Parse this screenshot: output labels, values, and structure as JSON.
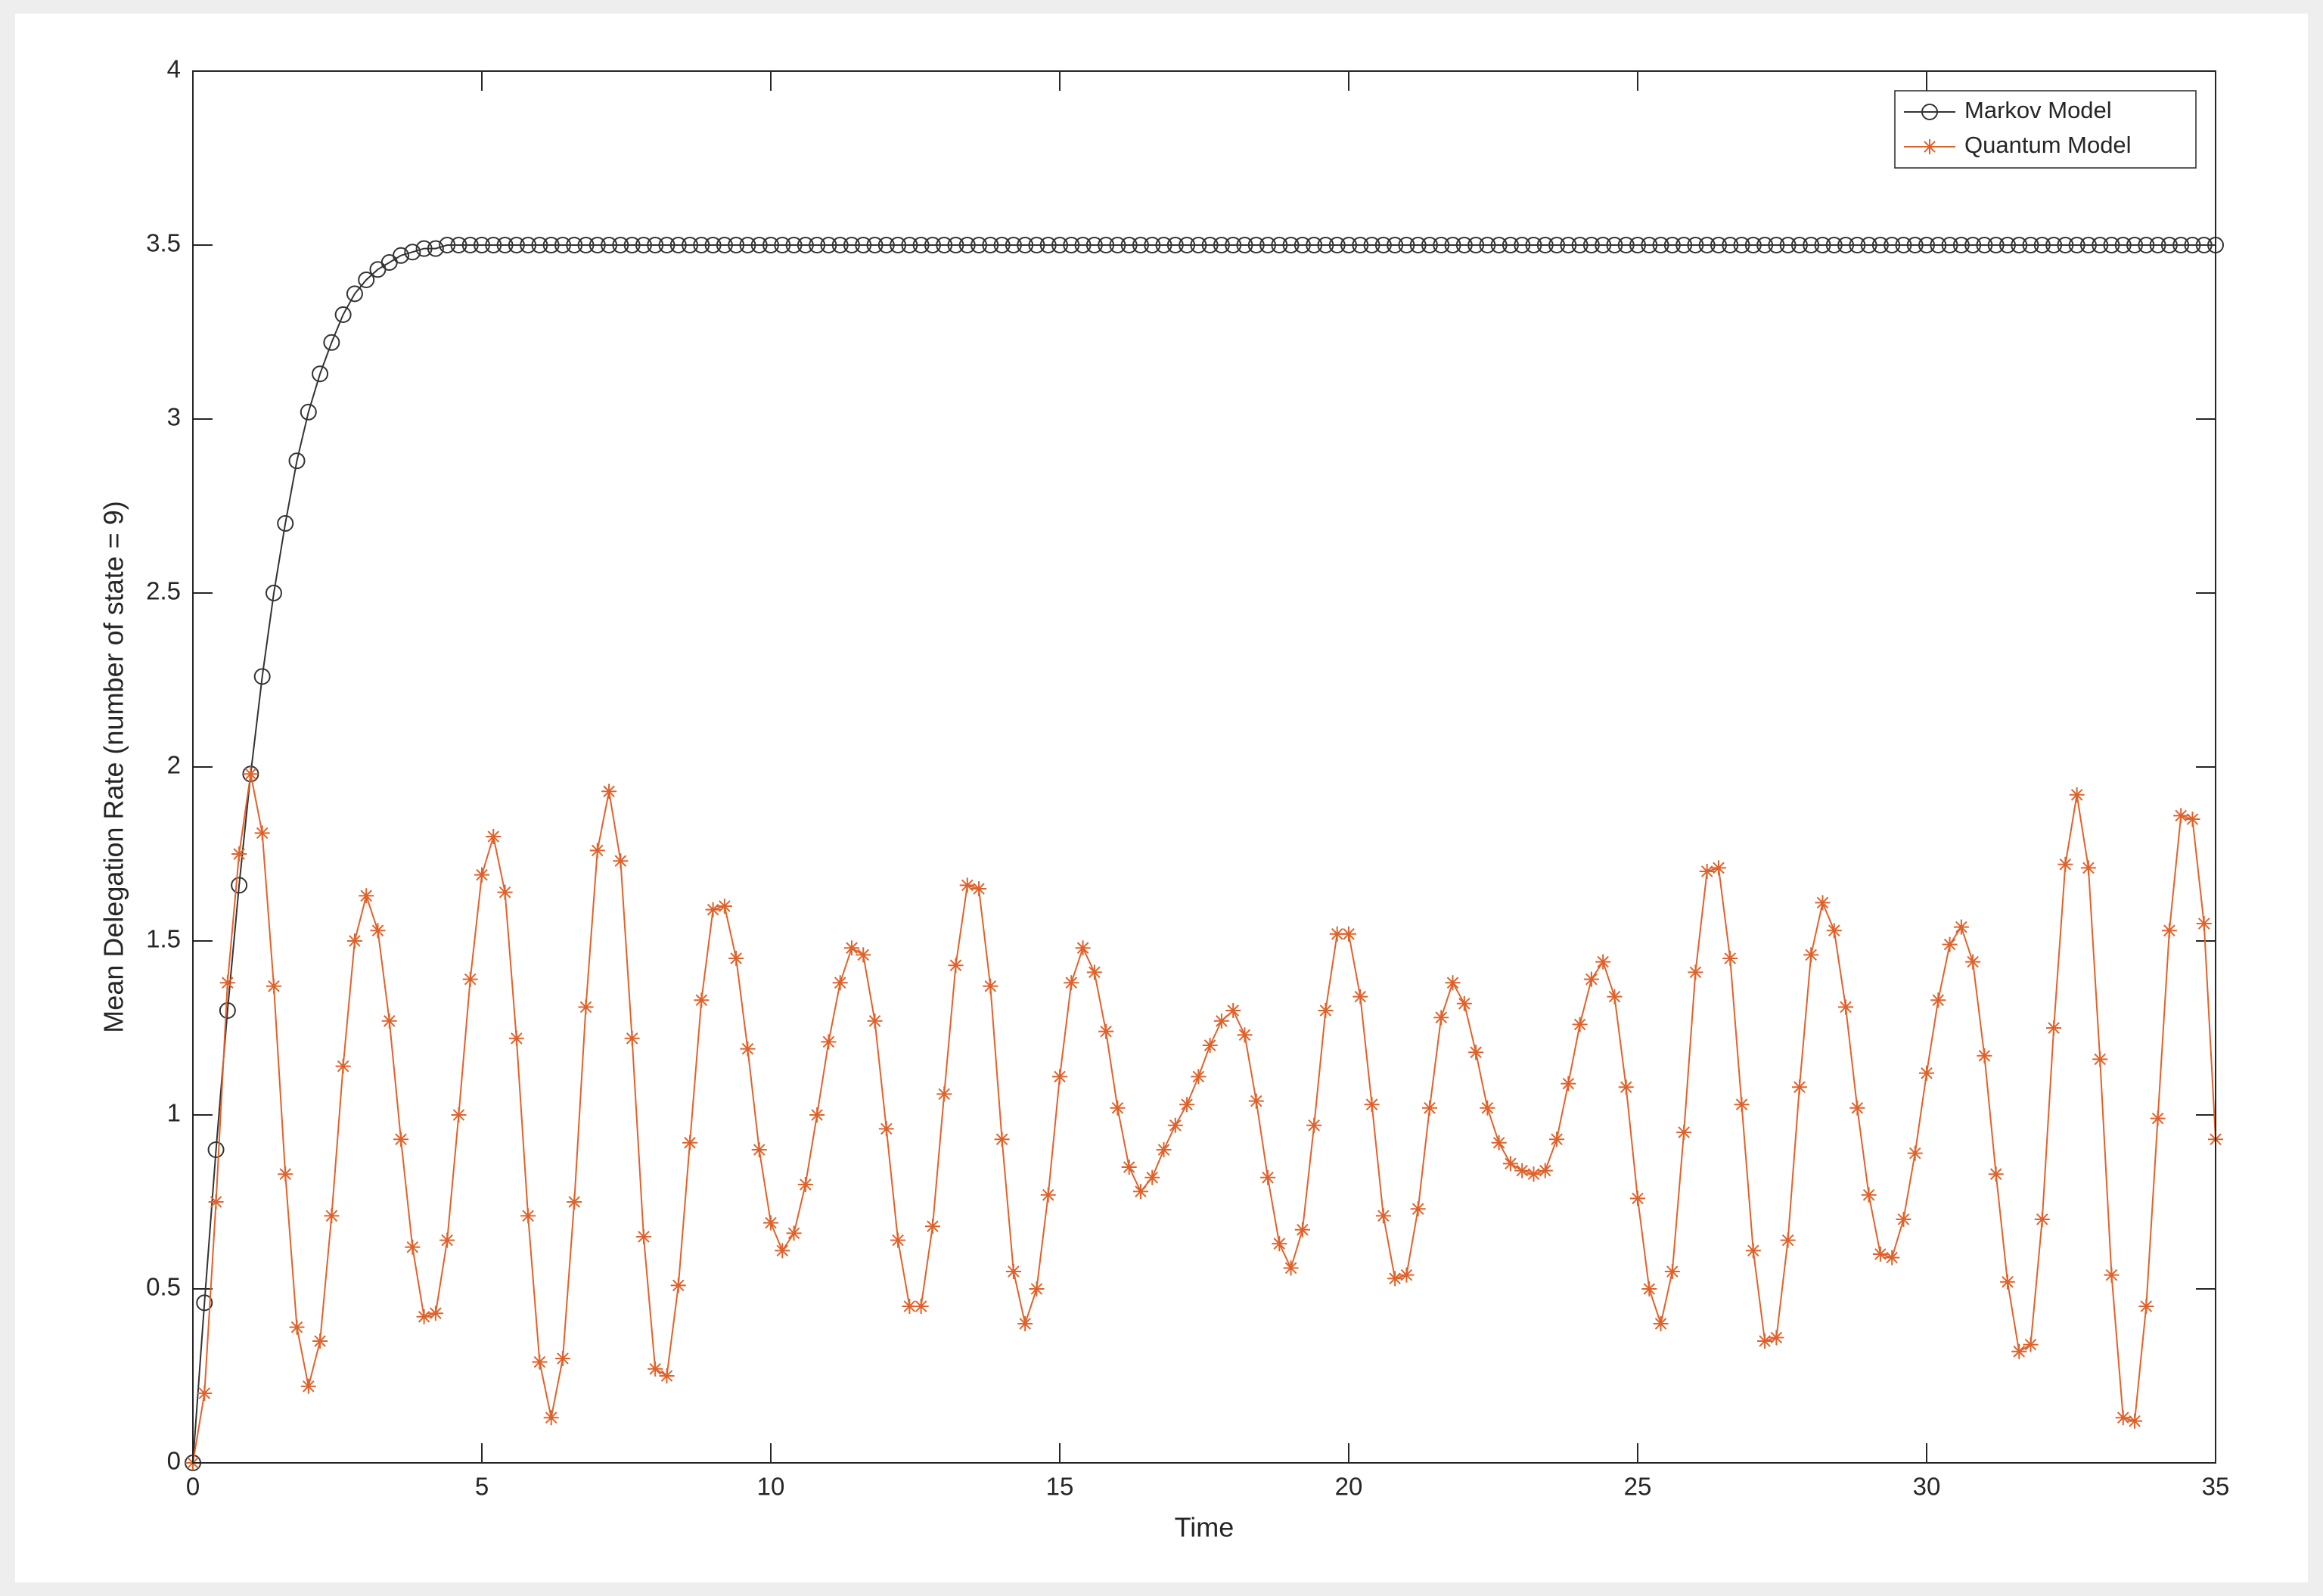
{
  "chart_data": {
    "type": "line",
    "xlabel": "Time",
    "ylabel": "Mean Delegation Rate (number of state = 9)",
    "xlim": [
      0,
      35
    ],
    "xticks": [
      0,
      5,
      10,
      15,
      20,
      25,
      30,
      35
    ],
    "ylim": [
      0,
      4
    ],
    "yticks": [
      0,
      0.5,
      1,
      1.5,
      2,
      2.5,
      3,
      3.5,
      4
    ],
    "grid": false,
    "legend": "northeast",
    "x": [
      0,
      0.2,
      0.4,
      0.6,
      0.8,
      1,
      1.2,
      1.4,
      1.6,
      1.8,
      2,
      2.2,
      2.4,
      2.6,
      2.8,
      3,
      3.2,
      3.4,
      3.6,
      3.8,
      4,
      4.2,
      4.4,
      4.6,
      4.8,
      5,
      5.2,
      5.4,
      5.6,
      5.8,
      6,
      6.2,
      6.4,
      6.6,
      6.8,
      7,
      7.2,
      7.4,
      7.6,
      7.8,
      8,
      8.2,
      8.4,
      8.6,
      8.8,
      9,
      9.2,
      9.4,
      9.6,
      9.8,
      10,
      10.2,
      10.4,
      10.6,
      10.8,
      11,
      11.2,
      11.4,
      11.6,
      11.8,
      12,
      12.2,
      12.4,
      12.6,
      12.8,
      13,
      13.2,
      13.4,
      13.6,
      13.8,
      14,
      14.2,
      14.4,
      14.6,
      14.8,
      15,
      15.2,
      15.4,
      15.6,
      15.8,
      16,
      16.2,
      16.4,
      16.6,
      16.8,
      17,
      17.2,
      17.4,
      17.6,
      17.8,
      18,
      18.2,
      18.4,
      18.6,
      18.8,
      19,
      19.2,
      19.4,
      19.6,
      19.8,
      20,
      20.2,
      20.4,
      20.6,
      20.8,
      21,
      21.2,
      21.4,
      21.6,
      21.8,
      22,
      22.2,
      22.4,
      22.6,
      22.8,
      23,
      23.2,
      23.4,
      23.6,
      23.8,
      24,
      24.2,
      24.4,
      24.6,
      24.8,
      25,
      25.2,
      25.4,
      25.6,
      25.8,
      26,
      26.2,
      26.4,
      26.6,
      26.8,
      27,
      27.2,
      27.4,
      27.6,
      27.8,
      28,
      28.2,
      28.4,
      28.6,
      28.8,
      29,
      29.2,
      29.4,
      29.6,
      29.8,
      30,
      30.2,
      30.4,
      30.6,
      30.8,
      31,
      31.2,
      31.4,
      31.6,
      31.8,
      32,
      32.2,
      32.4,
      32.6,
      32.8,
      33,
      33.2,
      33.4,
      33.6,
      33.8,
      34,
      34.2,
      34.4,
      34.6,
      34.8,
      35
    ],
    "series": [
      {
        "name": "Markov Model",
        "color": "#333333",
        "marker": "o",
        "values": [
          0,
          0.46,
          0.9,
          1.3,
          1.66,
          1.98,
          2.26,
          2.5,
          2.7,
          2.88,
          3.02,
          3.13,
          3.22,
          3.3,
          3.36,
          3.4,
          3.43,
          3.45,
          3.47,
          3.48,
          3.49,
          3.49,
          3.5,
          3.5,
          3.5,
          3.5,
          3.5,
          3.5,
          3.5,
          3.5,
          3.5,
          3.5,
          3.5,
          3.5,
          3.5,
          3.5,
          3.5,
          3.5,
          3.5,
          3.5,
          3.5,
          3.5,
          3.5,
          3.5,
          3.5,
          3.5,
          3.5,
          3.5,
          3.5,
          3.5,
          3.5,
          3.5,
          3.5,
          3.5,
          3.5,
          3.5,
          3.5,
          3.5,
          3.5,
          3.5,
          3.5,
          3.5,
          3.5,
          3.5,
          3.5,
          3.5,
          3.5,
          3.5,
          3.5,
          3.5,
          3.5,
          3.5,
          3.5,
          3.5,
          3.5,
          3.5,
          3.5,
          3.5,
          3.5,
          3.5,
          3.5,
          3.5,
          3.5,
          3.5,
          3.5,
          3.5,
          3.5,
          3.5,
          3.5,
          3.5,
          3.5,
          3.5,
          3.5,
          3.5,
          3.5,
          3.5,
          3.5,
          3.5,
          3.5,
          3.5,
          3.5,
          3.5,
          3.5,
          3.5,
          3.5,
          3.5,
          3.5,
          3.5,
          3.5,
          3.5,
          3.5,
          3.5,
          3.5,
          3.5,
          3.5,
          3.5,
          3.5,
          3.5,
          3.5,
          3.5,
          3.5,
          3.5,
          3.5,
          3.5,
          3.5,
          3.5,
          3.5,
          3.5,
          3.5,
          3.5,
          3.5,
          3.5,
          3.5,
          3.5,
          3.5,
          3.5,
          3.5,
          3.5,
          3.5,
          3.5,
          3.5,
          3.5,
          3.5,
          3.5,
          3.5,
          3.5,
          3.5,
          3.5,
          3.5,
          3.5,
          3.5,
          3.5,
          3.5,
          3.5,
          3.5,
          3.5,
          3.5,
          3.5,
          3.5,
          3.5,
          3.5,
          3.5,
          3.5,
          3.5,
          3.5,
          3.5,
          3.5,
          3.5,
          3.5,
          3.5,
          3.5,
          3.5,
          3.5,
          3.5,
          3.5,
          3.5
        ]
      },
      {
        "name": "Quantum Model",
        "color": "#e0622a",
        "marker": "*",
        "values": [
          0,
          0.2,
          0.75,
          1.38,
          1.75,
          1.98,
          1.81,
          1.37,
          0.83,
          0.39,
          0.22,
          0.35,
          0.71,
          1.14,
          1.5,
          1.63,
          1.53,
          1.27,
          0.93,
          0.62,
          0.42,
          0.43,
          0.64,
          1,
          1.39,
          1.69,
          1.8,
          1.64,
          1.22,
          0.71,
          0.29,
          0.13,
          0.3,
          0.75,
          1.31,
          1.76,
          1.93,
          1.73,
          1.22,
          0.65,
          0.27,
          0.25,
          0.51,
          0.92,
          1.33,
          1.59,
          1.6,
          1.45,
          1.19,
          0.9,
          0.69,
          0.61,
          0.66,
          0.8,
          1,
          1.21,
          1.38,
          1.48,
          1.46,
          1.27,
          0.96,
          0.64,
          0.45,
          0.45,
          0.68,
          1.06,
          1.43,
          1.66,
          1.65,
          1.37,
          0.93,
          0.55,
          0.4,
          0.5,
          0.77,
          1.11,
          1.38,
          1.48,
          1.41,
          1.24,
          1.02,
          0.85,
          0.78,
          0.82,
          0.9,
          0.97,
          1.03,
          1.11,
          1.2,
          1.27,
          1.3,
          1.23,
          1.04,
          0.82,
          0.63,
          0.56,
          0.67,
          0.97,
          1.3,
          1.52,
          1.52,
          1.34,
          1.03,
          0.71,
          0.53,
          0.54,
          0.73,
          1.02,
          1.28,
          1.38,
          1.32,
          1.18,
          1.02,
          0.92,
          0.86,
          0.84,
          0.83,
          0.84,
          0.93,
          1.09,
          1.26,
          1.39,
          1.44,
          1.34,
          1.08,
          0.76,
          0.5,
          0.4,
          0.55,
          0.95,
          1.41,
          1.7,
          1.71,
          1.45,
          1.03,
          0.61,
          0.35,
          0.36,
          0.64,
          1.08,
          1.46,
          1.61,
          1.53,
          1.31,
          1.02,
          0.77,
          0.6,
          0.59,
          0.7,
          0.89,
          1.12,
          1.33,
          1.49,
          1.54,
          1.44,
          1.17,
          0.83,
          0.52,
          0.32,
          0.34,
          0.7,
          1.25,
          1.72,
          1.92,
          1.71,
          1.16,
          0.54,
          0.13,
          0.12,
          0.45,
          0.99,
          1.53,
          1.86,
          1.85,
          1.55,
          0.93
        ]
      }
    ]
  }
}
